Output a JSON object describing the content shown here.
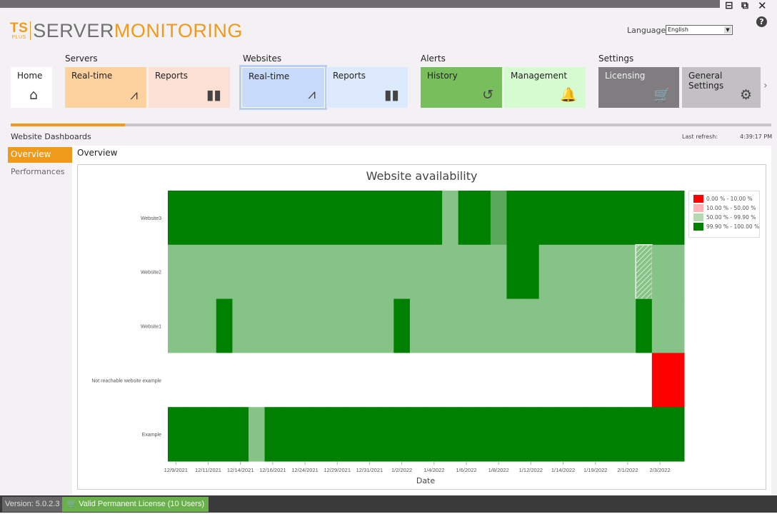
{
  "window": {
    "controls": {
      "minimize": "⊟",
      "popout": "⧉",
      "close": "✕"
    }
  },
  "logo": {
    "ts": "TS",
    "plus": "PLUS",
    "server": "SERVER",
    "monitoring": "MONITORING"
  },
  "language": {
    "label": "Language",
    "value": "English"
  },
  "help": "?",
  "nav": {
    "groups": [
      {
        "label": "Servers"
      },
      {
        "label": "Websites"
      },
      {
        "label": "Alerts"
      },
      {
        "label": "Settings"
      }
    ],
    "tiles": [
      {
        "label": "Home",
        "icon": "home-icon",
        "glyph": "⌂",
        "color": "#ffffff"
      },
      {
        "label": "Real-time",
        "icon": "realtime-chart-icon",
        "glyph": "⩘",
        "color": "#fdd29f"
      },
      {
        "label": "Reports",
        "icon": "bar-chart-icon",
        "glyph": "▮▮",
        "color": "#fde0d4"
      },
      {
        "label": "Real-time",
        "icon": "realtime-chart-icon",
        "glyph": "⩘",
        "color": "#c7daf9"
      },
      {
        "label": "Reports",
        "icon": "bar-chart-icon",
        "glyph": "▮▮",
        "color": "#dde9fc"
      },
      {
        "label": "History",
        "icon": "history-icon",
        "glyph": "↺",
        "color": "#78be5c"
      },
      {
        "label": "Management",
        "icon": "bell-icon",
        "glyph": "🔔",
        "color": "#d7fbd1"
      },
      {
        "label": "Licensing",
        "icon": "cart-icon",
        "glyph": "🛒",
        "color": "#7f7d7f"
      },
      {
        "label": "General Settings",
        "icon": "gear-icon",
        "glyph": "⚙",
        "color": "#c2c0c2"
      }
    ],
    "next": "›"
  },
  "page": {
    "title": "Website Dashboards",
    "last_refresh_label": "Last refresh:",
    "last_refresh": "4:39:17 PM",
    "progress_percent": 15
  },
  "sidebar": {
    "items": [
      {
        "label": "Overview",
        "active": true
      },
      {
        "label": "Performances",
        "active": false
      }
    ]
  },
  "main": {
    "title": "Overview"
  },
  "chart_data": {
    "type": "heatmap",
    "title": "Website availability",
    "xlabel": "Date",
    "ylabel": "",
    "rows": [
      "Website3",
      "Website2",
      "Website1",
      "Not reachable website example",
      "Example"
    ],
    "x_tick_labels": [
      "12/9/2021",
      "12/11/2021",
      "12/14/2021",
      "12/16/2021",
      "12/24/2021",
      "12/29/2021",
      "12/31/2021",
      "1/2/2022",
      "1/4/2022",
      "1/6/2022",
      "1/8/2022",
      "1/12/2022",
      "1/14/2022",
      "1/19/2022",
      "2/1/2022",
      "2/3/2022"
    ],
    "columns": 32,
    "legend": [
      {
        "label": "0.00 % - 10.00 %",
        "color": "#ff0000"
      },
      {
        "label": "10.00 % - 50.00 %",
        "color": "#ffb3b3"
      },
      {
        "label": "50.00 % - 99.90 %",
        "color": "#b3dab3"
      },
      {
        "label": "99.90 % - 100.00 %",
        "color": "#008000"
      }
    ],
    "legend_position": "right",
    "cell_classes": {
      "Website3": "HHHHHHHHHHHHHHHHHMHHMHHHHHHHHHHH",
      "Website2": "MMMMMMMMMMMMMMMMMMMMMHHMMMMMMSMM",
      "Website1": "MMMHMMMMMMMMMMHMMMMMMMMMMMMMMHMM",
      "Not reachable website example": "..............................LL",
      "Example": "HHHHHMHHHHHHHHHHHHHHHHHHHHHHHHHH"
    },
    "cell_class_key": {
      "H": "99.90 % - 100.00 %",
      "M": "50.00 % - 99.90 %",
      "L": "0.00 % - 10.00 %",
      "S": "50.00 % - 99.90 % (selected)",
      ".": "no data"
    }
  },
  "status": {
    "version": "Version: 5.0.2.3",
    "license": "Valid Permanent License (10 Users)",
    "license_icon": "cart-icon"
  }
}
